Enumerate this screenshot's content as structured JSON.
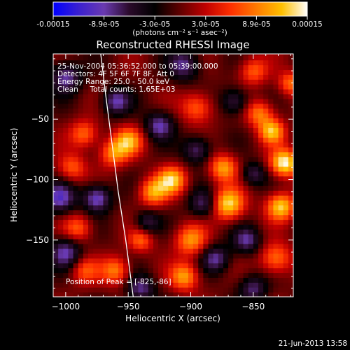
{
  "footer_timestamp": "21-Jun-2013 13:58",
  "colorbar": {
    "tick_labels": [
      "-0.00015",
      "-8.9e-05",
      "-3.0e-05",
      "3.0e-05",
      "8.9e-05",
      "0.00015"
    ],
    "unit_label": "(photons cm⁻² s⁻¹ asec⁻²)",
    "colormap_stops": [
      "#0000ff",
      "#3a20d0",
      "#6a3ab0",
      "#2a0a2a",
      "#000000",
      "#600000",
      "#c00000",
      "#ff3000",
      "#ff7a00",
      "#ffc000",
      "#ffffff"
    ]
  },
  "chart_data": {
    "type": "heatmap",
    "title": "Reconstructed RHESSI Image",
    "xlabel": "Heliocentric X (arcsec)",
    "ylabel": "Heliocentric Y (arcsec)",
    "x_range": [
      -1010,
      -818
    ],
    "y_range": [
      -197,
      4
    ],
    "x_ticks": [
      -1000,
      -950,
      -900,
      -850
    ],
    "y_ticks": [
      -50,
      -100,
      -150
    ],
    "color_range": [
      -0.00015,
      0.00015
    ],
    "annotations": [
      "25-Nov-2004 05:36:52.000 to 05:39:00.000",
      "Detectors: 4F 5F 6F 7F 8F, Att 0",
      "Energy Range: 25.0 - 50.0 keV",
      "Clean     Total counts: 1.65E+03"
    ],
    "peak_label": "Position of Peak = [-825,-86]",
    "peak": [
      -825,
      -86
    ],
    "limb_curve": [
      [
        -972,
        4
      ],
      [
        -968,
        -30
      ],
      [
        -963,
        -70
      ],
      [
        -958,
        -110
      ],
      [
        -952,
        -150
      ],
      [
        -946,
        -197
      ]
    ],
    "sources": [
      {
        "x": -825,
        "y": -86,
        "amp": 1.0,
        "sigma": 8
      },
      {
        "x": -828,
        "y": -122,
        "amp": 0.85,
        "sigma": 8
      },
      {
        "x": -835,
        "y": -60,
        "amp": 0.75,
        "sigma": 7
      },
      {
        "x": -845,
        "y": -45,
        "amp": 0.6,
        "sigma": 8
      },
      {
        "x": -832,
        "y": -165,
        "amp": 0.6,
        "sigma": 9
      },
      {
        "x": -870,
        "y": -120,
        "amp": 0.9,
        "sigma": 9
      },
      {
        "x": -874,
        "y": -90,
        "amp": 0.7,
        "sigma": 8
      },
      {
        "x": -895,
        "y": -40,
        "amp": 0.55,
        "sigma": 9
      },
      {
        "x": -900,
        "y": -150,
        "amp": 0.65,
        "sigma": 9
      },
      {
        "x": -905,
        "y": -180,
        "amp": 0.7,
        "sigma": 8
      },
      {
        "x": -915,
        "y": -100,
        "amp": 0.8,
        "sigma": 8
      },
      {
        "x": -930,
        "y": -110,
        "amp": 0.7,
        "sigma": 8
      },
      {
        "x": -950,
        "y": -68,
        "amp": 0.7,
        "sigma": 8
      },
      {
        "x": -962,
        "y": -78,
        "amp": 0.6,
        "sigma": 8
      },
      {
        "x": -960,
        "y": -175,
        "amp": 0.6,
        "sigma": 8
      },
      {
        "x": -985,
        "y": -62,
        "amp": 0.55,
        "sigma": 8
      },
      {
        "x": -995,
        "y": -90,
        "amp": 0.5,
        "sigma": 8
      },
      {
        "x": -990,
        "y": -140,
        "amp": 0.5,
        "sigma": 8
      },
      {
        "x": -985,
        "y": -175,
        "amp": 0.45,
        "sigma": 8
      },
      {
        "x": -850,
        "y": -10,
        "amp": 0.5,
        "sigma": 8
      },
      {
        "x": -820,
        "y": -20,
        "amp": 0.55,
        "sigma": 7
      },
      {
        "x": -940,
        "y": -150,
        "amp": 0.5,
        "sigma": 7
      }
    ],
    "negative_sources": [
      {
        "x": -1000,
        "y": -15,
        "amp": 0.6,
        "sigma": 9
      },
      {
        "x": -1005,
        "y": -115,
        "amp": 0.65,
        "sigma": 9
      },
      {
        "x": -1000,
        "y": -160,
        "amp": 0.6,
        "sigma": 9
      },
      {
        "x": -975,
        "y": -115,
        "amp": 0.7,
        "sigma": 8
      },
      {
        "x": -960,
        "y": -35,
        "amp": 0.6,
        "sigma": 8
      },
      {
        "x": -940,
        "y": -190,
        "amp": 0.55,
        "sigma": 8
      },
      {
        "x": -925,
        "y": -55,
        "amp": 0.6,
        "sigma": 8
      },
      {
        "x": -905,
        "y": -5,
        "amp": 0.55,
        "sigma": 9
      },
      {
        "x": -895,
        "y": -75,
        "amp": 0.55,
        "sigma": 8
      },
      {
        "x": -890,
        "y": -120,
        "amp": 0.5,
        "sigma": 8
      },
      {
        "x": -880,
        "y": -165,
        "amp": 0.55,
        "sigma": 8
      },
      {
        "x": -865,
        "y": -35,
        "amp": 0.5,
        "sigma": 8
      },
      {
        "x": -855,
        "y": -150,
        "amp": 0.55,
        "sigma": 8
      },
      {
        "x": -850,
        "y": -190,
        "amp": 0.5,
        "sigma": 8
      },
      {
        "x": -850,
        "y": -95,
        "amp": 0.45,
        "sigma": 7
      },
      {
        "x": -935,
        "y": -135,
        "amp": 0.45,
        "sigma": 7
      }
    ]
  }
}
